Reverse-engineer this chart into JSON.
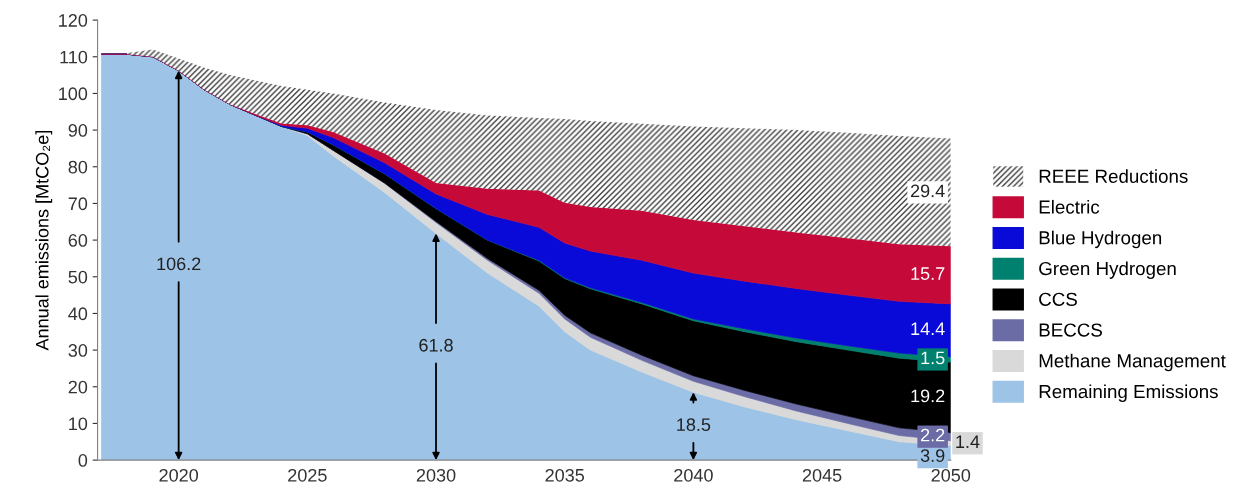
{
  "chart_data": {
    "type": "area",
    "stacked": true,
    "ylabel": "Annual emissions [MtCO₂e]",
    "x": [
      2017,
      2018,
      2019,
      2020,
      2021,
      2022,
      2023,
      2024,
      2025,
      2026,
      2028,
      2030,
      2032,
      2034,
      2035,
      2036,
      2038,
      2040,
      2042,
      2044,
      2046,
      2048,
      2050
    ],
    "xlim": [
      2016.85,
      2050
    ],
    "xticks": [
      2020,
      2025,
      2030,
      2035,
      2040,
      2045,
      2050
    ],
    "ylim": [
      0,
      120
    ],
    "yticks": [
      0,
      10,
      20,
      30,
      40,
      50,
      60,
      70,
      80,
      90,
      100,
      110,
      120
    ],
    "grid": false,
    "legend": "right",
    "series": [
      {
        "name": "Remaining Emissions",
        "color": "#9dc3e6",
        "values": [
          110.7,
          110.7,
          110,
          106.2,
          101,
          97,
          94,
          91,
          88.5,
          83,
          73,
          61.8,
          51,
          42,
          35,
          30,
          24,
          18.5,
          14.5,
          11,
          8,
          5,
          3.9
        ],
        "value_labels": [
          null,
          null,
          null,
          null,
          null,
          null,
          null,
          null,
          null,
          null,
          null,
          null,
          null,
          null,
          null,
          null,
          null,
          null,
          null,
          null,
          null,
          null,
          "3.9"
        ]
      },
      {
        "name": "Methane Management",
        "color": "#d9d9d9",
        "values": [
          0,
          0,
          0,
          0,
          0,
          0,
          0,
          0,
          0.5,
          1.5,
          2.5,
          3,
          3.5,
          3.5,
          3.5,
          3.5,
          3.2,
          3,
          2.8,
          2.4,
          2,
          1.7,
          1.4
        ],
        "value_labels": [
          null,
          null,
          null,
          null,
          null,
          null,
          null,
          null,
          null,
          null,
          null,
          null,
          null,
          null,
          null,
          null,
          null,
          null,
          null,
          null,
          null,
          null,
          "1.4"
        ]
      },
      {
        "name": "BECCS",
        "color": "#6b6ba6",
        "values": [
          0,
          0,
          0,
          0,
          0,
          0,
          0,
          0,
          0,
          0,
          0.1,
          0.3,
          0.5,
          0.8,
          1,
          1.2,
          1.4,
          1.5,
          1.7,
          1.9,
          2,
          2.1,
          2.2
        ],
        "value_labels": [
          null,
          null,
          null,
          null,
          null,
          null,
          null,
          null,
          null,
          null,
          null,
          null,
          null,
          null,
          null,
          null,
          null,
          null,
          null,
          null,
          null,
          null,
          "2.2"
        ]
      },
      {
        "name": "CCS",
        "color": "#000000",
        "values": [
          0,
          0,
          0,
          0,
          0,
          0,
          0,
          0,
          0.5,
          1.5,
          2.5,
          3.5,
          5,
          8,
          10,
          12,
          14,
          15,
          16,
          17,
          18,
          19,
          19.2
        ],
        "value_labels": [
          null,
          null,
          null,
          null,
          null,
          null,
          null,
          null,
          null,
          null,
          null,
          null,
          null,
          null,
          null,
          null,
          null,
          null,
          null,
          null,
          null,
          null,
          "19.2"
        ]
      },
      {
        "name": "Green Hydrogen",
        "color": "#00806e",
        "values": [
          0,
          0,
          0,
          0,
          0,
          0,
          0,
          0,
          0,
          0,
          0,
          0,
          0,
          0.2,
          0.2,
          0.3,
          0.4,
          0.5,
          0.8,
          1,
          1.2,
          1.4,
          1.5
        ],
        "value_labels": [
          null,
          null,
          null,
          null,
          null,
          null,
          null,
          null,
          null,
          null,
          null,
          null,
          null,
          null,
          null,
          null,
          null,
          null,
          null,
          null,
          null,
          null,
          "1.5"
        ]
      },
      {
        "name": "Blue Hydrogen",
        "color": "#0a0ad8",
        "values": [
          0,
          0,
          0,
          0,
          0,
          0,
          0,
          0.3,
          1,
          2,
          3,
          4,
          7,
          9,
          9.5,
          10,
          11.5,
          12.5,
          13,
          13.5,
          13.8,
          14.1,
          14.4
        ],
        "value_labels": [
          null,
          null,
          null,
          null,
          null,
          null,
          null,
          null,
          null,
          null,
          null,
          null,
          null,
          null,
          null,
          null,
          null,
          null,
          null,
          null,
          null,
          null,
          "14.4"
        ]
      },
      {
        "name": "Electric",
        "color": "#c50a3a",
        "values": [
          0,
          0,
          0,
          0,
          0,
          0,
          0.3,
          0.5,
          0.8,
          1.5,
          2.5,
          3,
          7,
          10,
          11,
          12,
          13.5,
          14.5,
          15,
          15.3,
          15.5,
          15.6,
          15.7
        ],
        "value_labels": [
          null,
          null,
          null,
          null,
          null,
          null,
          null,
          null,
          null,
          null,
          null,
          null,
          null,
          null,
          null,
          null,
          null,
          null,
          null,
          null,
          null,
          null,
          "15.7"
        ]
      },
      {
        "name": "REEE Reductions",
        "color": "#404040",
        "values": [
          null,
          0.3,
          2,
          3.3,
          6,
          8,
          9.2,
          10.2,
          9.7,
          10.5,
          13.9,
          19.9,
          20,
          19.8,
          22.8,
          23.5,
          23.7,
          25.5,
          26.7,
          27.9,
          28.8,
          29.5,
          29.4
        ],
        "value_labels": [
          null,
          null,
          null,
          null,
          null,
          null,
          null,
          null,
          null,
          null,
          null,
          null,
          null,
          null,
          null,
          null,
          null,
          null,
          null,
          null,
          null,
          null,
          "29.4"
        ]
      }
    ],
    "annotations": [
      {
        "text": "106.2",
        "x": 2020,
        "y": 106.2
      },
      {
        "text": "61.8",
        "x": 2030,
        "y": 61.8
      },
      {
        "text": "18.5",
        "x": 2040,
        "y": 18.5
      }
    ]
  }
}
